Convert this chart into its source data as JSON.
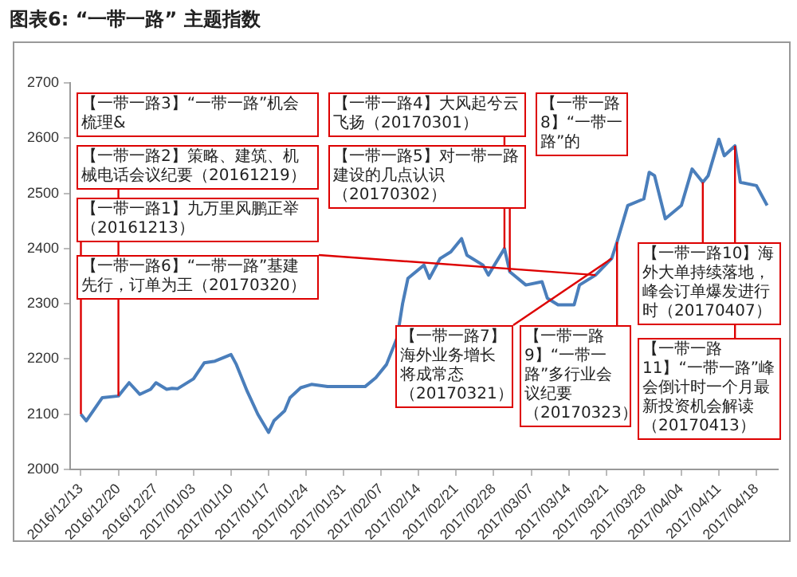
{
  "chart_data": {
    "type": "line",
    "title": "图表6: “一带一路” 主题指数",
    "x": [
      "2016-12-13",
      "2016-12-14",
      "2016-12-16",
      "2016-12-17",
      "2016-12-20",
      "2016-12-21",
      "2016-12-22",
      "2016-12-24",
      "2016-12-26",
      "2016-12-27",
      "2016-12-29",
      "2016-12-30",
      "2016-12-31",
      "2017-01-03",
      "2017-01-05",
      "2017-01-07",
      "2017-01-10",
      "2017-01-11",
      "2017-01-13",
      "2017-01-15",
      "2017-01-17",
      "2017-01-18",
      "2017-01-20",
      "2017-01-21",
      "2017-01-23",
      "2017-01-25",
      "2017-01-28",
      "2017-02-01",
      "2017-02-04",
      "2017-02-06",
      "2017-02-08",
      "2017-02-10",
      "2017-02-11",
      "2017-02-12",
      "2017-02-15",
      "2017-02-16",
      "2017-02-18",
      "2017-02-20",
      "2017-02-22",
      "2017-02-23",
      "2017-02-26",
      "2017-02-27",
      "2017-03-02",
      "2017-03-03",
      "2017-03-06",
      "2017-03-09",
      "2017-03-10",
      "2017-03-12",
      "2017-03-15",
      "2017-03-16",
      "2017-03-19",
      "2017-03-22",
      "2017-03-23",
      "2017-03-25",
      "2017-03-28",
      "2017-03-29",
      "2017-03-30",
      "2017-04-01",
      "2017-04-04",
      "2017-04-06",
      "2017-04-08",
      "2017-04-09",
      "2017-04-11",
      "2017-04-12",
      "2017-04-14",
      "2017-04-15",
      "2017-04-18",
      "2017-04-20"
    ],
    "series": [
      {
        "color": "#4a7ebb",
        "values": [
          2100,
          2088,
          2116,
          2130,
          2133,
          2145,
          2157,
          2136,
          2145,
          2157,
          2145,
          2147,
          2146,
          2164,
          2193,
          2196,
          2208,
          2190,
          2142,
          2100,
          2067,
          2088,
          2106,
          2130,
          2148,
          2154,
          2150,
          2150,
          2150,
          2166,
          2190,
          2239,
          2300,
          2346,
          2370,
          2346,
          2382,
          2394,
          2418,
          2388,
          2370,
          2352,
          2400,
          2358,
          2334,
          2340,
          2310,
          2298,
          2298,
          2334,
          2352,
          2382,
          2412,
          2478,
          2490,
          2538,
          2532,
          2454,
          2478,
          2544,
          2520,
          2532,
          2598,
          2568,
          2586,
          2520,
          2514,
          2478
        ]
      }
    ],
    "xlim": [
      "2016-12-11",
      "2017-04-22"
    ],
    "xticks": [
      {
        "value": "2016-12-13",
        "label": "2016/12/13"
      },
      {
        "value": "2016-12-20",
        "label": "2016/12/20"
      },
      {
        "value": "2016-12-27",
        "label": "2016/12/27"
      },
      {
        "value": "2017-01-03",
        "label": "2017/01/03"
      },
      {
        "value": "2017-01-10",
        "label": "2017/01/10"
      },
      {
        "value": "2017-01-17",
        "label": "2017/01/17"
      },
      {
        "value": "2017-01-24",
        "label": "2017/01/24"
      },
      {
        "value": "2017-01-31",
        "label": "2017/01/31"
      },
      {
        "value": "2017-02-07",
        "label": "2017/02/07"
      },
      {
        "value": "2017-02-14",
        "label": "2017/02/14"
      },
      {
        "value": "2017-02-21",
        "label": "2017/02/21"
      },
      {
        "value": "2017-02-28",
        "label": "2017/02/28"
      },
      {
        "value": "2017-03-07",
        "label": "2017/03/07"
      },
      {
        "value": "2017-03-14",
        "label": "2017/03/14"
      },
      {
        "value": "2017-03-21",
        "label": "2017/03/21"
      },
      {
        "value": "2017-03-28",
        "label": "2017/03/28"
      },
      {
        "value": "2017-04-04",
        "label": "2017/04/04"
      },
      {
        "value": "2017-04-11",
        "label": "2017/04/11"
      },
      {
        "value": "2017-04-18",
        "label": "2017/04/18"
      }
    ],
    "ylim": [
      2000,
      2700
    ],
    "yticks": [
      2000,
      2100,
      2200,
      2300,
      2400,
      2500,
      2600,
      2700
    ],
    "grid": false,
    "legend": false,
    "marker": "none",
    "line_style": "solid",
    "annotations": [
      {
        "text": "【一带一路1】九万里风鹏正举（20161213）",
        "x": "2016-12-13",
        "y": 2100
      },
      {
        "text": "【一带一路2】策略、建筑、机械电话会议纪要（20161219）",
        "x": "2016-12-20",
        "y": 2133
      },
      "【一带一路3】“一带一路”机会梳理&",
      {
        "text": "【一带一路4】大风起兮云飞扬（20170301）",
        "x": "2017-03-02",
        "y": 2400
      },
      {
        "text": "【一带一路5】对一带一路建设的几点认识（20170302）",
        "x": "2017-03-03",
        "y": 2358
      },
      {
        "text": "【一带一路6】“一带一路”基建先行，订单为王（20170320）",
        "x": "2017-03-19",
        "y": 2352
      },
      {
        "text": "【一带一路7】海外业务增长将成常态（20170321）",
        "x": "2017-03-22",
        "y": 2382
      },
      "【一带一路8】“一带一路”的",
      {
        "text": "【一带一路9】“一带一路”多行业会议纪要（20170323）",
        "x": "2017-03-23",
        "y": 2412
      },
      {
        "text": "【一带一路10】海外大单持续落地，峰会订单爆发进行时（20170407）",
        "x": "2017-04-08",
        "y": 2520
      },
      {
        "text": "【一带一路11】“一带一路”峰会倒计时一个月最新投资机会解读（20170413）",
        "x": "2017-04-14",
        "y": 2586
      }
    ]
  }
}
